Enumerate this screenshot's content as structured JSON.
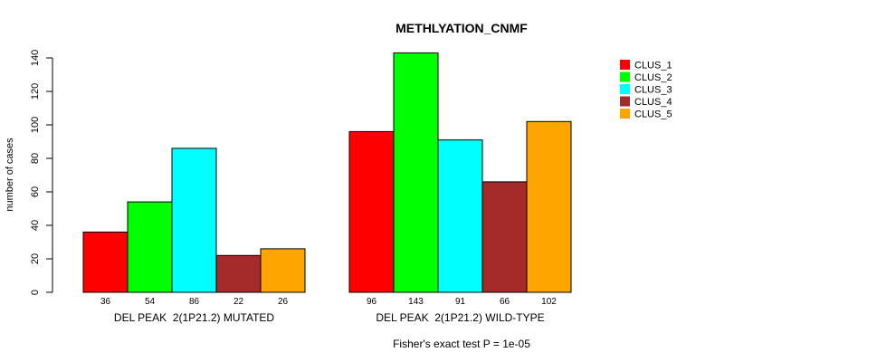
{
  "chart_data": {
    "type": "bar",
    "title": "METHLYATION_CNMF",
    "ylabel": "number of cases",
    "xlabel": "",
    "ylim": [
      0,
      140
    ],
    "yticks": [
      0,
      20,
      40,
      60,
      80,
      100,
      120,
      140
    ],
    "groups": [
      "DEL PEAK  2(1P21.2) MUTATED",
      "DEL PEAK  2(1P21.2) WILD-TYPE"
    ],
    "series": [
      {
        "name": "CLUS_1",
        "color": "#ff0000",
        "values": [
          36,
          96
        ]
      },
      {
        "name": "CLUS_2",
        "color": "#00ff00",
        "values": [
          54,
          143
        ]
      },
      {
        "name": "CLUS_3",
        "color": "#00ffff",
        "values": [
          86,
          91
        ]
      },
      {
        "name": "CLUS_4",
        "color": "#a52a2a",
        "values": [
          22,
          66
        ]
      },
      {
        "name": "CLUS_5",
        "color": "#ffa500",
        "values": [
          26,
          102
        ]
      }
    ],
    "bar_labels": [
      [
        "36",
        "54",
        "86",
        "22",
        "26"
      ],
      [
        "96",
        "143",
        "91",
        "66",
        "102"
      ]
    ],
    "legend_position": "top-right",
    "footnote": "Fisher's exact test P = 1e-05"
  }
}
